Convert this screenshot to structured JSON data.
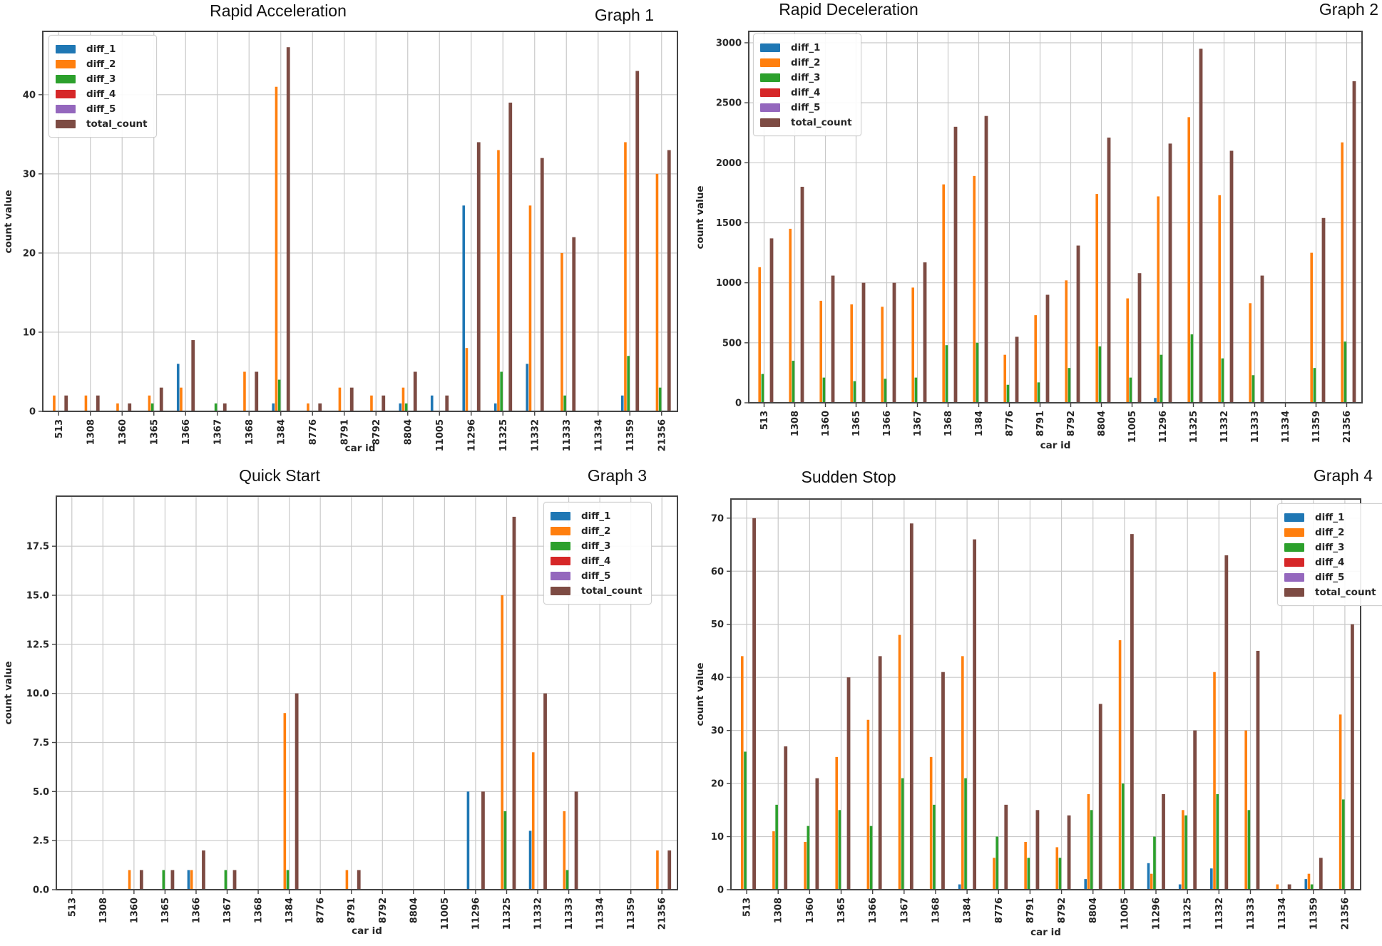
{
  "figure": {
    "background": "#ffffff",
    "grid_color": "#c9c9c9",
    "border_color": "#454545",
    "text_color": "#262626"
  },
  "chart_data": [
    {
      "type": "bar",
      "title": "Rapid Acceleration",
      "graph_label": "Graph 1",
      "xlabel": "car id",
      "ylabel": "count value",
      "legend_position": "top-left",
      "grid": true,
      "ylim": [
        0,
        48
      ],
      "yticks": [
        {
          "label": "0",
          "value": 0
        },
        {
          "label": "10",
          "value": 10
        },
        {
          "label": "20",
          "value": 20
        },
        {
          "label": "30",
          "value": 30
        },
        {
          "label": "40",
          "value": 40
        }
      ],
      "categories": [
        "513",
        "1308",
        "1360",
        "1365",
        "1366",
        "1367",
        "1368",
        "1384",
        "8776",
        "8791",
        "8792",
        "8804",
        "11005",
        "11296",
        "11325",
        "11332",
        "11333",
        "11334",
        "11359",
        "21356"
      ],
      "series": [
        {
          "name": "diff_1",
          "color": "#1f77b4",
          "values": [
            0,
            0,
            0,
            0,
            6,
            0,
            0,
            1,
            0,
            0,
            0,
            1,
            2,
            26,
            1,
            6,
            0,
            0,
            2,
            0
          ]
        },
        {
          "name": "diff_2",
          "color": "#ff7f0e",
          "values": [
            2,
            2,
            1,
            2,
            3,
            0,
            5,
            41,
            1,
            3,
            2,
            3,
            0,
            8,
            33,
            26,
            20,
            0,
            34,
            30
          ]
        },
        {
          "name": "diff_3",
          "color": "#2ca02c",
          "values": [
            0,
            0,
            0,
            1,
            0,
            1,
            0,
            4,
            0,
            0,
            0,
            1,
            0,
            0,
            5,
            0,
            2,
            0,
            7,
            3
          ]
        },
        {
          "name": "diff_4",
          "color": "#d62728",
          "values": [
            0,
            0,
            0,
            0,
            0,
            0,
            0,
            0,
            0,
            0,
            0,
            0,
            0,
            0,
            0,
            0,
            0,
            0,
            0,
            0
          ]
        },
        {
          "name": "diff_5",
          "color": "#9467bd",
          "values": [
            0,
            0,
            0,
            0,
            0,
            0,
            0,
            0,
            0,
            0,
            0,
            0,
            0,
            0,
            0,
            0,
            0,
            0,
            0,
            0
          ]
        },
        {
          "name": "total_count",
          "color": "#7d4b43",
          "values": [
            2,
            2,
            1,
            3,
            9,
            1,
            5,
            46,
            1,
            3,
            2,
            5,
            2,
            34,
            39,
            32,
            22,
            0,
            43,
            33
          ]
        }
      ]
    },
    {
      "type": "bar",
      "title": "Rapid Deceleration",
      "graph_label": "Graph 2",
      "xlabel": "car id",
      "ylabel": "count value",
      "legend_position": "top-left",
      "grid": true,
      "ylim": [
        0,
        3095
      ],
      "yticks": [
        {
          "label": "0",
          "value": 0
        },
        {
          "label": "500",
          "value": 500
        },
        {
          "label": "1000",
          "value": 1000
        },
        {
          "label": "1500",
          "value": 1500
        },
        {
          "label": "2000",
          "value": 2000
        },
        {
          "label": "2500",
          "value": 2500
        },
        {
          "label": "3000",
          "value": 3000
        }
      ],
      "categories": [
        "513",
        "1308",
        "1360",
        "1365",
        "1366",
        "1367",
        "1368",
        "1384",
        "8776",
        "8791",
        "8792",
        "8804",
        "11005",
        "11296",
        "11325",
        "11332",
        "11333",
        "11334",
        "11359",
        "21356"
      ],
      "series": [
        {
          "name": "diff_1",
          "color": "#1f77b4",
          "values": [
            0,
            0,
            0,
            0,
            0,
            0,
            0,
            0,
            0,
            0,
            0,
            0,
            0,
            40,
            0,
            0,
            0,
            0,
            0,
            0
          ]
        },
        {
          "name": "diff_2",
          "color": "#ff7f0e",
          "values": [
            1130,
            1450,
            850,
            820,
            800,
            960,
            1820,
            1890,
            400,
            730,
            1020,
            1740,
            870,
            1720,
            2380,
            1730,
            830,
            0,
            1250,
            2170
          ]
        },
        {
          "name": "diff_3",
          "color": "#2ca02c",
          "values": [
            240,
            350,
            210,
            180,
            200,
            210,
            480,
            500,
            150,
            170,
            290,
            470,
            210,
            400,
            570,
            370,
            230,
            0,
            290,
            510
          ]
        },
        {
          "name": "diff_4",
          "color": "#d62728",
          "values": [
            0,
            0,
            0,
            0,
            0,
            0,
            0,
            0,
            0,
            0,
            0,
            0,
            0,
            0,
            0,
            0,
            0,
            0,
            0,
            0
          ]
        },
        {
          "name": "diff_5",
          "color": "#9467bd",
          "values": [
            0,
            0,
            0,
            0,
            0,
            0,
            0,
            0,
            0,
            0,
            0,
            0,
            0,
            0,
            0,
            0,
            0,
            0,
            0,
            0
          ]
        },
        {
          "name": "total_count",
          "color": "#7d4b43",
          "values": [
            1370,
            1800,
            1060,
            1000,
            1000,
            1170,
            2300,
            2390,
            550,
            900,
            1310,
            2210,
            1080,
            2160,
            2950,
            2100,
            1060,
            0,
            1540,
            2680
          ]
        }
      ]
    },
    {
      "type": "bar",
      "title": "Quick Start",
      "graph_label": "Graph 3",
      "xlabel": "car id",
      "ylabel": "count value",
      "legend_position": "top-right",
      "grid": true,
      "ylim": [
        0,
        20.05
      ],
      "yticks": [
        {
          "label": "0.0",
          "value": 0
        },
        {
          "label": "2.5",
          "value": 2.5
        },
        {
          "label": "5.0",
          "value": 5
        },
        {
          "label": "7.5",
          "value": 7.5
        },
        {
          "label": "10.0",
          "value": 10
        },
        {
          "label": "12.5",
          "value": 12.5
        },
        {
          "label": "15.0",
          "value": 15
        },
        {
          "label": "17.5",
          "value": 17.5
        }
      ],
      "categories": [
        "513",
        "1308",
        "1360",
        "1365",
        "1366",
        "1367",
        "1368",
        "1384",
        "8776",
        "8791",
        "8792",
        "8804",
        "11005",
        "11296",
        "11325",
        "11332",
        "11333",
        "11334",
        "11359",
        "21356"
      ],
      "series": [
        {
          "name": "diff_1",
          "color": "#1f77b4",
          "values": [
            0,
            0,
            0,
            0,
            1,
            0,
            0,
            0,
            0,
            0,
            0,
            0,
            0,
            5,
            0,
            3,
            0,
            0,
            0,
            0
          ]
        },
        {
          "name": "diff_2",
          "color": "#ff7f0e",
          "values": [
            0,
            0,
            1,
            0,
            1,
            0,
            0,
            9,
            0,
            1,
            0,
            0,
            0,
            0,
            15,
            7,
            4,
            0,
            0,
            2
          ]
        },
        {
          "name": "diff_3",
          "color": "#2ca02c",
          "values": [
            0,
            0,
            0,
            1,
            0,
            1,
            0,
            1,
            0,
            0,
            0,
            0,
            0,
            0,
            4,
            0,
            1,
            0,
            0,
            0
          ]
        },
        {
          "name": "diff_4",
          "color": "#d62728",
          "values": [
            0,
            0,
            0,
            0,
            0,
            0,
            0,
            0,
            0,
            0,
            0,
            0,
            0,
            0,
            0,
            0,
            0,
            0,
            0,
            0
          ]
        },
        {
          "name": "diff_5",
          "color": "#9467bd",
          "values": [
            0,
            0,
            0,
            0,
            0,
            0,
            0,
            0,
            0,
            0,
            0,
            0,
            0,
            0,
            0,
            0,
            0,
            0,
            0,
            0
          ]
        },
        {
          "name": "total_count",
          "color": "#7d4b43",
          "values": [
            0,
            0,
            1,
            1,
            2,
            1,
            0,
            10,
            0,
            1,
            0,
            0,
            0,
            5,
            19,
            10,
            5,
            0,
            0,
            2
          ]
        }
      ]
    },
    {
      "type": "bar",
      "title": "Sudden Stop",
      "graph_label": "Graph 4",
      "xlabel": "car id",
      "ylabel": "count value",
      "legend_position": "top-right",
      "grid": true,
      "ylim": [
        0,
        73.6
      ],
      "yticks": [
        {
          "label": "0",
          "value": 0
        },
        {
          "label": "10",
          "value": 10
        },
        {
          "label": "20",
          "value": 20
        },
        {
          "label": "30",
          "value": 30
        },
        {
          "label": "40",
          "value": 40
        },
        {
          "label": "50",
          "value": 50
        },
        {
          "label": "60",
          "value": 60
        },
        {
          "label": "70",
          "value": 70
        }
      ],
      "categories": [
        "513",
        "1308",
        "1360",
        "1365",
        "1366",
        "1367",
        "1368",
        "1384",
        "8776",
        "8791",
        "8792",
        "8804",
        "11005",
        "11296",
        "11325",
        "11332",
        "11333",
        "11334",
        "11359",
        "21356"
      ],
      "series": [
        {
          "name": "diff_1",
          "color": "#1f77b4",
          "values": [
            0,
            0,
            0,
            0,
            0,
            0,
            0,
            1,
            0,
            0,
            0,
            2,
            0,
            5,
            1,
            4,
            0,
            0,
            2,
            0
          ]
        },
        {
          "name": "diff_2",
          "color": "#ff7f0e",
          "values": [
            44,
            11,
            9,
            25,
            32,
            48,
            25,
            44,
            6,
            9,
            8,
            18,
            47,
            3,
            15,
            41,
            30,
            1,
            3,
            33
          ]
        },
        {
          "name": "diff_3",
          "color": "#2ca02c",
          "values": [
            26,
            16,
            12,
            15,
            12,
            21,
            16,
            21,
            10,
            6,
            6,
            15,
            20,
            10,
            14,
            18,
            15,
            0,
            1,
            17
          ]
        },
        {
          "name": "diff_4",
          "color": "#d62728",
          "values": [
            0,
            0,
            0,
            0,
            0,
            0,
            0,
            0,
            0,
            0,
            0,
            0,
            0,
            0,
            0,
            0,
            0,
            0,
            0,
            0
          ]
        },
        {
          "name": "diff_5",
          "color": "#9467bd",
          "values": [
            0,
            0,
            0,
            0,
            0,
            0,
            0,
            0,
            0,
            0,
            0,
            0,
            0,
            0,
            0,
            0,
            0,
            0,
            0,
            0
          ]
        },
        {
          "name": "total_count",
          "color": "#7d4b43",
          "values": [
            70,
            27,
            21,
            40,
            44,
            69,
            41,
            66,
            16,
            15,
            14,
            35,
            67,
            18,
            30,
            63,
            45,
            1,
            6,
            50
          ]
        }
      ]
    }
  ]
}
